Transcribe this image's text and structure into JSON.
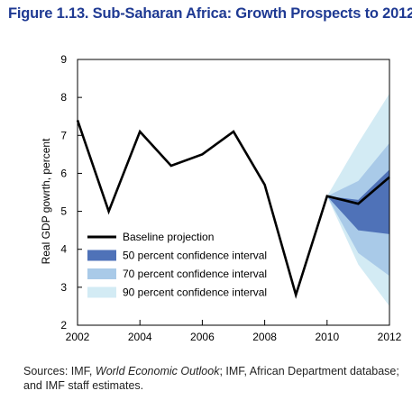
{
  "chart_data": {
    "type": "line",
    "title": "Figure 1.13. Sub-Saharan Africa: Growth Prospects to 2012",
    "xlabel": "",
    "ylabel": "Real GDP gowrth, percent",
    "xlim": [
      2002,
      2012
    ],
    "ylim": [
      2,
      9
    ],
    "x_ticks": [
      "2002",
      "2004",
      "2006",
      "2008",
      "2010",
      "2012"
    ],
    "y_ticks": [
      "2",
      "3",
      "4",
      "5",
      "6",
      "7",
      "8",
      "9"
    ],
    "grid": false,
    "legend_position": "bottom-left",
    "series": [
      {
        "name": "Baseline projection",
        "color": "#000000",
        "x": [
          2002,
          2003,
          2004,
          2005,
          2006,
          2007,
          2008,
          2009,
          2010,
          2011,
          2012
        ],
        "values": [
          7.4,
          5.0,
          7.1,
          6.2,
          6.5,
          7.1,
          5.7,
          2.8,
          5.4,
          5.2,
          5.9
        ]
      }
    ],
    "bands": [
      {
        "name": "90 percent confidence interval",
        "color": "#d3ebf4",
        "x": [
          2010,
          2011,
          2012
        ],
        "lower": [
          5.4,
          3.6,
          2.5
        ],
        "upper": [
          5.4,
          6.8,
          8.1
        ]
      },
      {
        "name": "70 percent confidence interval",
        "color": "#a9cae8",
        "x": [
          2010,
          2011,
          2012
        ],
        "lower": [
          5.4,
          3.9,
          3.3
        ],
        "upper": [
          5.4,
          5.8,
          6.8
        ]
      },
      {
        "name": "50 percent confidence interval",
        "color": "#4f72b8",
        "x": [
          2010,
          2011,
          2012
        ],
        "lower": [
          5.4,
          4.5,
          4.4
        ],
        "upper": [
          5.4,
          5.3,
          6.1
        ]
      }
    ],
    "legend_order": [
      "Baseline projection",
      "50 percent confidence interval",
      "70 percent confidence interval",
      "90 percent confidence interval"
    ]
  },
  "note": {
    "prefix": "Sources: IMF, ",
    "italic": "World Economic Outlook",
    "suffix": "; IMF, African Department database; and IMF staff estimates."
  }
}
